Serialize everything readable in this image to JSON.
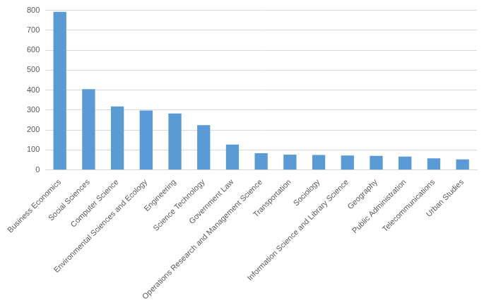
{
  "chart_data": {
    "type": "bar",
    "categories": [
      "Business Economics",
      "Social Sciences",
      "Computer Science",
      "Environmental Sciences and Ecology",
      "Engineering",
      "Science Technology",
      "Government Law",
      "Operations Research and Management Science",
      "Transportation",
      "Sociology",
      "Information Science and Library Science",
      "Geography",
      "Public Administration",
      "Telecommunications",
      "Urban Studies"
    ],
    "values": [
      792,
      405,
      318,
      298,
      283,
      224,
      127,
      84,
      77,
      75,
      72,
      70,
      67,
      58,
      53
    ],
    "color": "#5b9bd5",
    "ylim": [
      0,
      800
    ],
    "yticks": [
      0,
      100,
      200,
      300,
      400,
      500,
      600,
      700,
      800
    ],
    "grid": true
  }
}
